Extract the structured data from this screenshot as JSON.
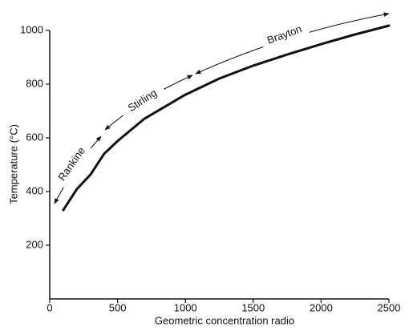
{
  "chart_data": {
    "type": "line",
    "x_label": "Geometric concentration radio",
    "y_label": "Temperature (°C)",
    "x": [
      100,
      200,
      300,
      400,
      500,
      700,
      1000,
      1250,
      1500,
      1750,
      2000,
      2250,
      2500
    ],
    "series": [
      {
        "color": "#111111",
        "values": [
          331,
          409,
          463,
          540,
          588,
          672,
          761,
          821,
          869,
          910,
          949,
          985,
          1018
        ]
      }
    ],
    "xlim": [
      0,
      2500
    ],
    "xticks": [
      0,
      500,
      1000,
      1500,
      2000,
      2500
    ],
    "ylim": [
      0,
      1000
    ],
    "yticks": [
      200,
      400,
      600,
      800,
      1000
    ],
    "annotations": [
      "Rankine",
      "Stirling",
      "Brayton"
    ]
  }
}
